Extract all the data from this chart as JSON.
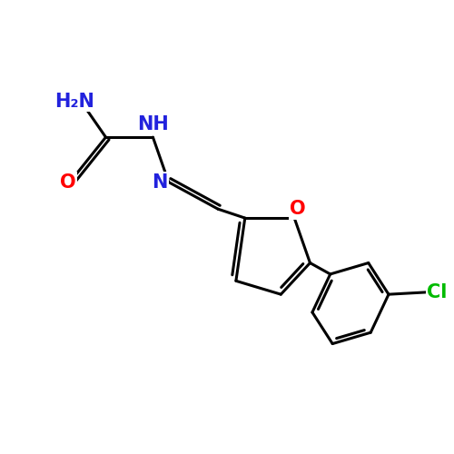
{
  "background_color": "#ffffff",
  "atom_colors": {
    "C": "#000000",
    "N": "#2222dd",
    "O": "#ff0000",
    "Cl": "#00bb00",
    "H": "#000000"
  },
  "bond_color": "#000000",
  "bond_width": 2.2,
  "font_size": 15
}
